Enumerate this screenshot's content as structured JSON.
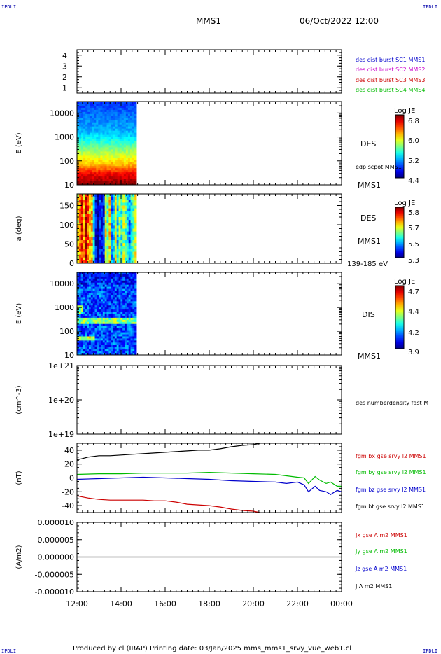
{
  "header": {
    "corner_left_top": "IPDLI",
    "corner_right_top": "IPDLI",
    "corner_left_bottom": "IPDLI",
    "corner_right_bottom": "IPDLI",
    "mission": "MMS1",
    "datetime": "06/Oct/2022 12:00"
  },
  "footer": {
    "text": "Produced by cl (IRAP)   Printing date: 03/Jan/2025   mms_mms1_srvy_vue_web1.cl"
  },
  "time_axis": {
    "ticks": [
      "12:00",
      "14:00",
      "16:00",
      "18:00",
      "20:00",
      "22:00",
      "00:00"
    ],
    "range_hours": [
      12,
      24
    ]
  },
  "chart_data": [
    {
      "type": "table",
      "id": "burst-availability",
      "yticks": [
        "4",
        "3",
        "2",
        "1"
      ],
      "ylim": [
        0.5,
        4.5
      ],
      "legend": [
        {
          "text": "des dist burst SC1 MMS1",
          "color": "#0000cc"
        },
        {
          "text": "des dist burst SC2 MMS2",
          "color": "#cc00cc"
        },
        {
          "text": "des dist burst SC3 MMS3",
          "color": "#cc0000"
        },
        {
          "text": "des dist burst SC4 MMS4",
          "color": "#00bb00"
        }
      ]
    },
    {
      "type": "heatmap",
      "id": "des-energy-spectrogram",
      "ylabel": "E (eV)",
      "yscale": "log",
      "ylim": [
        10,
        30000
      ],
      "yticks": [
        "10000",
        "1000",
        "100",
        "10"
      ],
      "x_data_range_hours": [
        12,
        14.7
      ],
      "colorbar": {
        "title": "Log JE",
        "ticks": [
          "6.8",
          "6.0",
          "5.2",
          "4.4"
        ],
        "range": [
          4.4,
          6.8
        ]
      },
      "side_labels": [
        "DES",
        "edp scpot MMS1",
        "MMS1"
      ]
    },
    {
      "type": "heatmap",
      "id": "des-pitch-angle",
      "ylabel": "a (deg)",
      "ylim": [
        0,
        180
      ],
      "yticks": [
        "150",
        "100",
        "50",
        "0"
      ],
      "x_data_range_hours": [
        12,
        14.7
      ],
      "colorbar": {
        "title": "Log JE",
        "ticks": [
          "5.8",
          "5.7",
          "5.5",
          "5.3"
        ],
        "range": [
          5.3,
          5.85
        ]
      },
      "side_labels": [
        "DES",
        "MMS1",
        "139-185 eV"
      ]
    },
    {
      "type": "heatmap",
      "id": "dis-energy-spectrogram",
      "ylabel": "E (eV)",
      "yscale": "log",
      "ylim": [
        10,
        30000
      ],
      "yticks": [
        "10000",
        "1000",
        "100",
        "10"
      ],
      "x_data_range_hours": [
        12,
        14.7
      ],
      "colorbar": {
        "title": "Log JE",
        "ticks": [
          "4.7",
          "4.4",
          "4.2",
          "3.9"
        ],
        "range": [
          3.9,
          4.75
        ]
      },
      "side_labels": [
        "DIS",
        "MMS1"
      ]
    },
    {
      "type": "line",
      "id": "des-number-density",
      "ylabel": "(cm^-3)",
      "yscale": "log",
      "ylim": [
        1e+19,
        1e+21
      ],
      "yticks": [
        "1e+21",
        "1e+20",
        "1e+19"
      ],
      "legend": [
        {
          "text": "des numberdensity fast M",
          "color": "#000000"
        }
      ]
    },
    {
      "type": "line",
      "id": "fgm-magnetic-field",
      "ylabel": "(nT)",
      "ylim": [
        -50,
        50
      ],
      "yticks": [
        "40",
        "20",
        "0",
        "-20",
        "-40"
      ],
      "legend": [
        {
          "text": "fgm bx gse srvy l2 MMS1",
          "color": "#cc0000"
        },
        {
          "text": "fgm by gse srvy l2 MMS1",
          "color": "#00bb00"
        },
        {
          "text": "fgm bz gse srvy l2 MMS1",
          "color": "#0000cc"
        },
        {
          "text": "fgm bt gse srvy l2 MMS1",
          "color": "#000000"
        }
      ],
      "series": [
        {
          "name": "fgm bt gse srvy l2 MMS1",
          "color": "#000000",
          "x": [
            12.0,
            12.5,
            13.0,
            13.5,
            14.0,
            14.5,
            15.0,
            15.5,
            16.0,
            16.5,
            17.0,
            17.5,
            18.0,
            18.5,
            19.0,
            19.5,
            20.0,
            20.3
          ],
          "y": [
            26,
            30,
            32,
            32,
            33,
            34,
            35,
            36,
            37,
            38,
            39,
            40,
            40,
            42,
            45,
            47,
            48,
            50
          ]
        },
        {
          "name": "fgm bx gse srvy l2 MMS1",
          "color": "#cc0000",
          "x": [
            12.0,
            12.5,
            13.0,
            13.5,
            14.0,
            14.5,
            15.0,
            15.5,
            16.0,
            16.5,
            17.0,
            17.5,
            18.0,
            18.5,
            19.0,
            19.5,
            20.0,
            20.3
          ],
          "y": [
            -26,
            -29,
            -31,
            -32,
            -32,
            -32,
            -32,
            -33,
            -33,
            -35,
            -38,
            -39,
            -40,
            -42,
            -45,
            -47,
            -48,
            -50
          ]
        },
        {
          "name": "fgm by gse srvy l2 MMS1",
          "color": "#00bb00",
          "x": [
            12.0,
            13.0,
            14.0,
            15.0,
            16.0,
            17.0,
            18.0,
            19.0,
            20.0,
            21.0,
            21.5,
            22.0,
            22.3,
            22.5,
            22.8,
            23.0,
            23.3,
            23.5,
            23.8,
            24.0
          ],
          "y": [
            5,
            6,
            6,
            7,
            7,
            7,
            8,
            7,
            6,
            5,
            3,
            1,
            0,
            -8,
            2,
            -3,
            -8,
            -6,
            -12,
            -12
          ]
        },
        {
          "name": "fgm bz gse srvy l2 MMS1",
          "color": "#0000cc",
          "x": [
            12.0,
            13.0,
            14.0,
            15.0,
            16.0,
            17.0,
            18.0,
            19.0,
            20.0,
            21.0,
            21.5,
            22.0,
            22.3,
            22.5,
            22.8,
            23.0,
            23.3,
            23.5,
            23.8,
            24.0
          ],
          "y": [
            -2,
            -1,
            0,
            1,
            0,
            -1,
            -2,
            -4,
            -5,
            -6,
            -8,
            -6,
            -10,
            -20,
            -12,
            -18,
            -20,
            -24,
            -18,
            -20
          ]
        }
      ]
    },
    {
      "type": "line",
      "id": "current-density",
      "ylabel": "(A/m2)",
      "ylim": [
        -1e-05,
        1e-05
      ],
      "yticks": [
        "0.000010",
        "0.000005",
        "0.000000",
        "-0.000005",
        "-0.000010"
      ],
      "legend": [
        {
          "text": "Jx gse A m2 MMS1",
          "color": "#cc0000"
        },
        {
          "text": "Jy gse A m2 MMS1",
          "color": "#00bb00"
        },
        {
          "text": "Jz gse A m2 MMS1",
          "color": "#0000cc"
        },
        {
          "text": "J A m2 MMS1",
          "color": "#000000"
        }
      ],
      "series": [
        {
          "name": "J A m2 MMS1",
          "color": "#000000",
          "x": [
            12,
            14,
            16,
            18,
            20,
            22,
            24
          ],
          "y": [
            0,
            0,
            0,
            0,
            0,
            0,
            0
          ]
        }
      ]
    }
  ]
}
